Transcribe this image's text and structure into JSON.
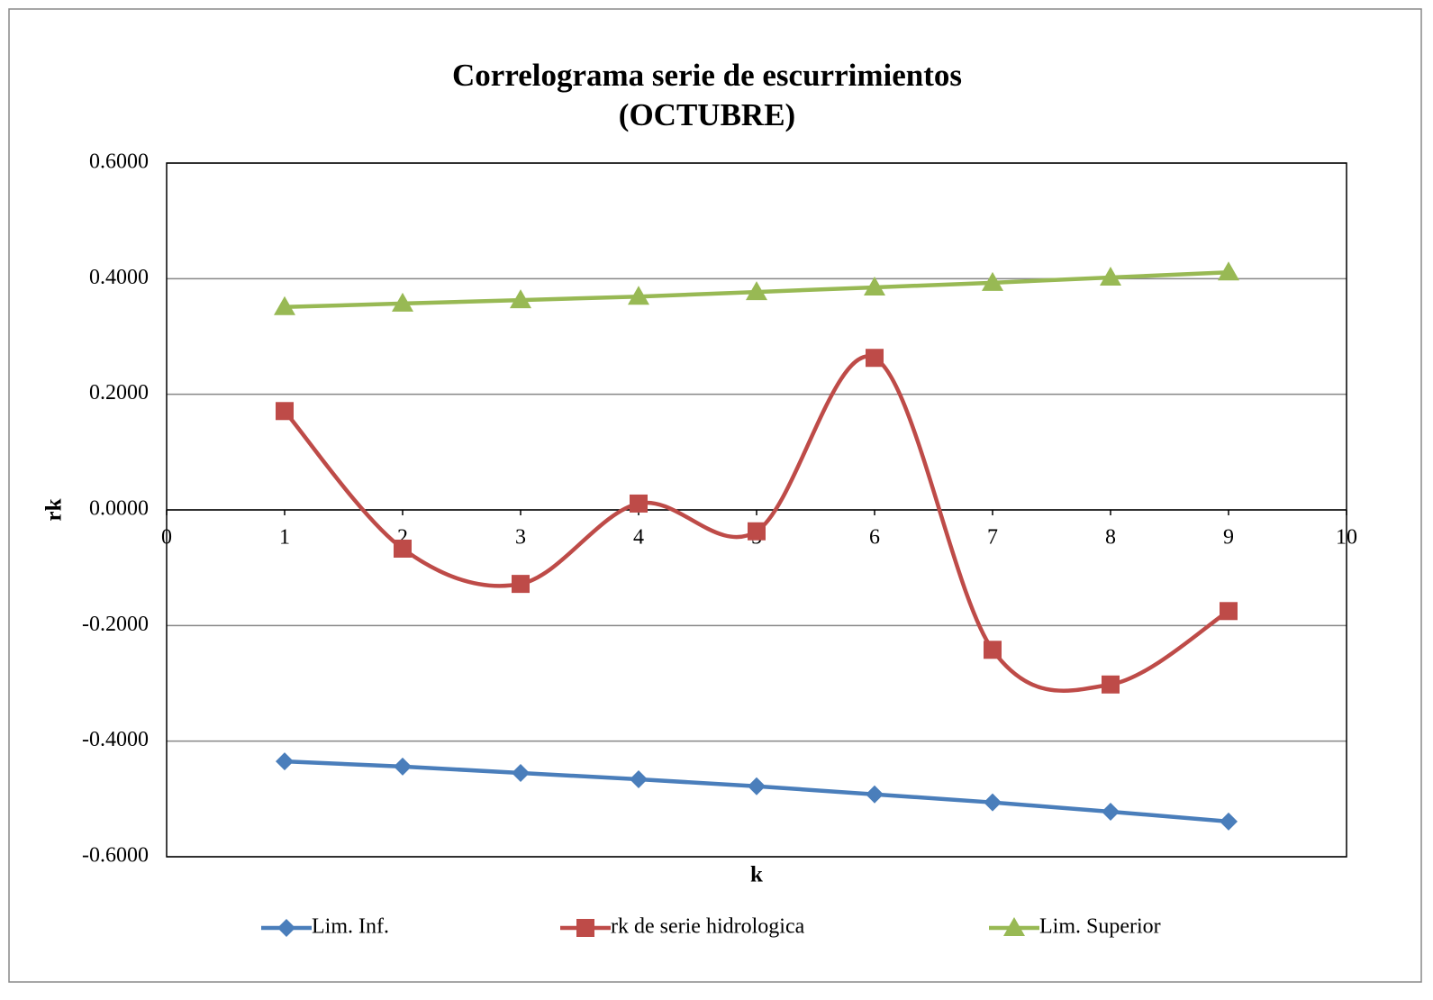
{
  "chart_data": {
    "type": "line",
    "title": "Correlograma serie de escurrimientos",
    "subtitle": "(OCTUBRE)",
    "x_label": "k",
    "y_label": "rk",
    "x": [
      1,
      2,
      3,
      4,
      5,
      6,
      7,
      8,
      9
    ],
    "smooth_series": [
      "rk de serie hidrologica"
    ],
    "series": [
      {
        "name": "Lim. Inf.",
        "color": "#4a7ebb",
        "marker": "diamond",
        "values": [
          -0.435,
          -0.444,
          -0.455,
          -0.466,
          -0.478,
          -0.492,
          -0.506,
          -0.522,
          -0.539
        ]
      },
      {
        "name": "rk de serie hidrologica",
        "color": "#be4b48",
        "marker": "square",
        "values": [
          0.171,
          -0.067,
          -0.128,
          0.011,
          -0.037,
          0.263,
          -0.242,
          -0.302,
          -0.175
        ]
      },
      {
        "name": "Lim. Superior",
        "color": "#98b954",
        "marker": "triangle",
        "values": [
          0.351,
          0.357,
          0.363,
          0.369,
          0.377,
          0.385,
          0.393,
          0.402,
          0.411
        ]
      }
    ],
    "xlim": [
      0,
      10
    ],
    "xticks": [
      0,
      1,
      2,
      3,
      4,
      5,
      6,
      7,
      8,
      9,
      10
    ],
    "ylim": [
      -0.6,
      0.6
    ],
    "yticks": [
      {
        "value": -0.6,
        "label": "-0.6000"
      },
      {
        "value": -0.4,
        "label": "-0.4000"
      },
      {
        "value": -0.2,
        "label": "-0.2000"
      },
      {
        "value": 0,
        "label": "0.0000"
      },
      {
        "value": 0.2,
        "label": "0.2000"
      },
      {
        "value": 0.4,
        "label": "0.4000"
      },
      {
        "value": 0.6,
        "label": "0.6000"
      }
    ],
    "grid": true,
    "legend": "bottom"
  }
}
